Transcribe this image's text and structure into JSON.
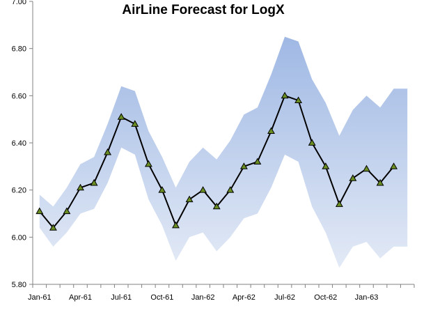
{
  "chart_data": {
    "type": "line",
    "title": "AirLine Forecast for LogX",
    "xlabel": "",
    "ylabel": "",
    "ylim": [
      5.8,
      7.0
    ],
    "yticks": [
      "5.80",
      "6.00",
      "6.20",
      "6.40",
      "6.60",
      "6.80",
      "7.00"
    ],
    "x_tick_labels": [
      "Jan-61",
      "Apr-61",
      "Jul-61",
      "Oct-61",
      "Jan-62",
      "Apr-62",
      "Jul-62",
      "Oct-62",
      "Jan-63"
    ],
    "x_tick_every": 3,
    "x": [
      "Jan-61",
      "Feb-61",
      "Mar-61",
      "Apr-61",
      "May-61",
      "Jun-61",
      "Jul-61",
      "Aug-61",
      "Sep-61",
      "Oct-61",
      "Nov-61",
      "Dec-61",
      "Jan-62",
      "Feb-62",
      "Mar-62",
      "Apr-62",
      "May-62",
      "Jun-62",
      "Jul-62",
      "Aug-62",
      "Sep-62",
      "Oct-62",
      "Nov-62",
      "Dec-62",
      "Jan-63",
      "Feb-63",
      "Mar-63",
      "Apr-63"
    ],
    "series": [
      {
        "values": [
          6.11,
          6.04,
          6.11,
          6.21,
          6.23,
          6.36,
          6.51,
          6.48,
          6.31,
          6.2,
          6.05,
          6.16,
          6.2,
          6.13,
          6.2,
          6.3,
          6.32,
          6.45,
          6.6,
          6.58,
          6.4,
          6.3,
          6.14,
          6.25,
          6.29,
          6.23,
          6.3,
          null
        ]
      }
    ],
    "band_upper": [
      6.18,
      6.13,
      6.21,
      6.31,
      6.34,
      6.48,
      6.64,
      6.62,
      6.45,
      6.34,
      6.21,
      6.32,
      6.38,
      6.33,
      6.41,
      6.52,
      6.55,
      6.69,
      6.85,
      6.83,
      6.67,
      6.57,
      6.43,
      6.54,
      6.6,
      6.55,
      6.63,
      6.63
    ],
    "band_lower": [
      6.04,
      5.96,
      6.02,
      6.1,
      6.12,
      6.23,
      6.38,
      6.35,
      6.16,
      6.05,
      5.9,
      6.0,
      6.02,
      5.94,
      6.0,
      6.08,
      6.1,
      6.21,
      6.35,
      6.32,
      6.13,
      6.02,
      5.87,
      5.96,
      5.98,
      5.91,
      5.96,
      5.96
    ],
    "colors": {
      "line": "#000000",
      "marker_fill": "#6b8e23",
      "band_top": "#9fb8e4",
      "band_bottom": "#e3eaf6",
      "axis": "#808080"
    },
    "grid": false,
    "legend": "none"
  }
}
